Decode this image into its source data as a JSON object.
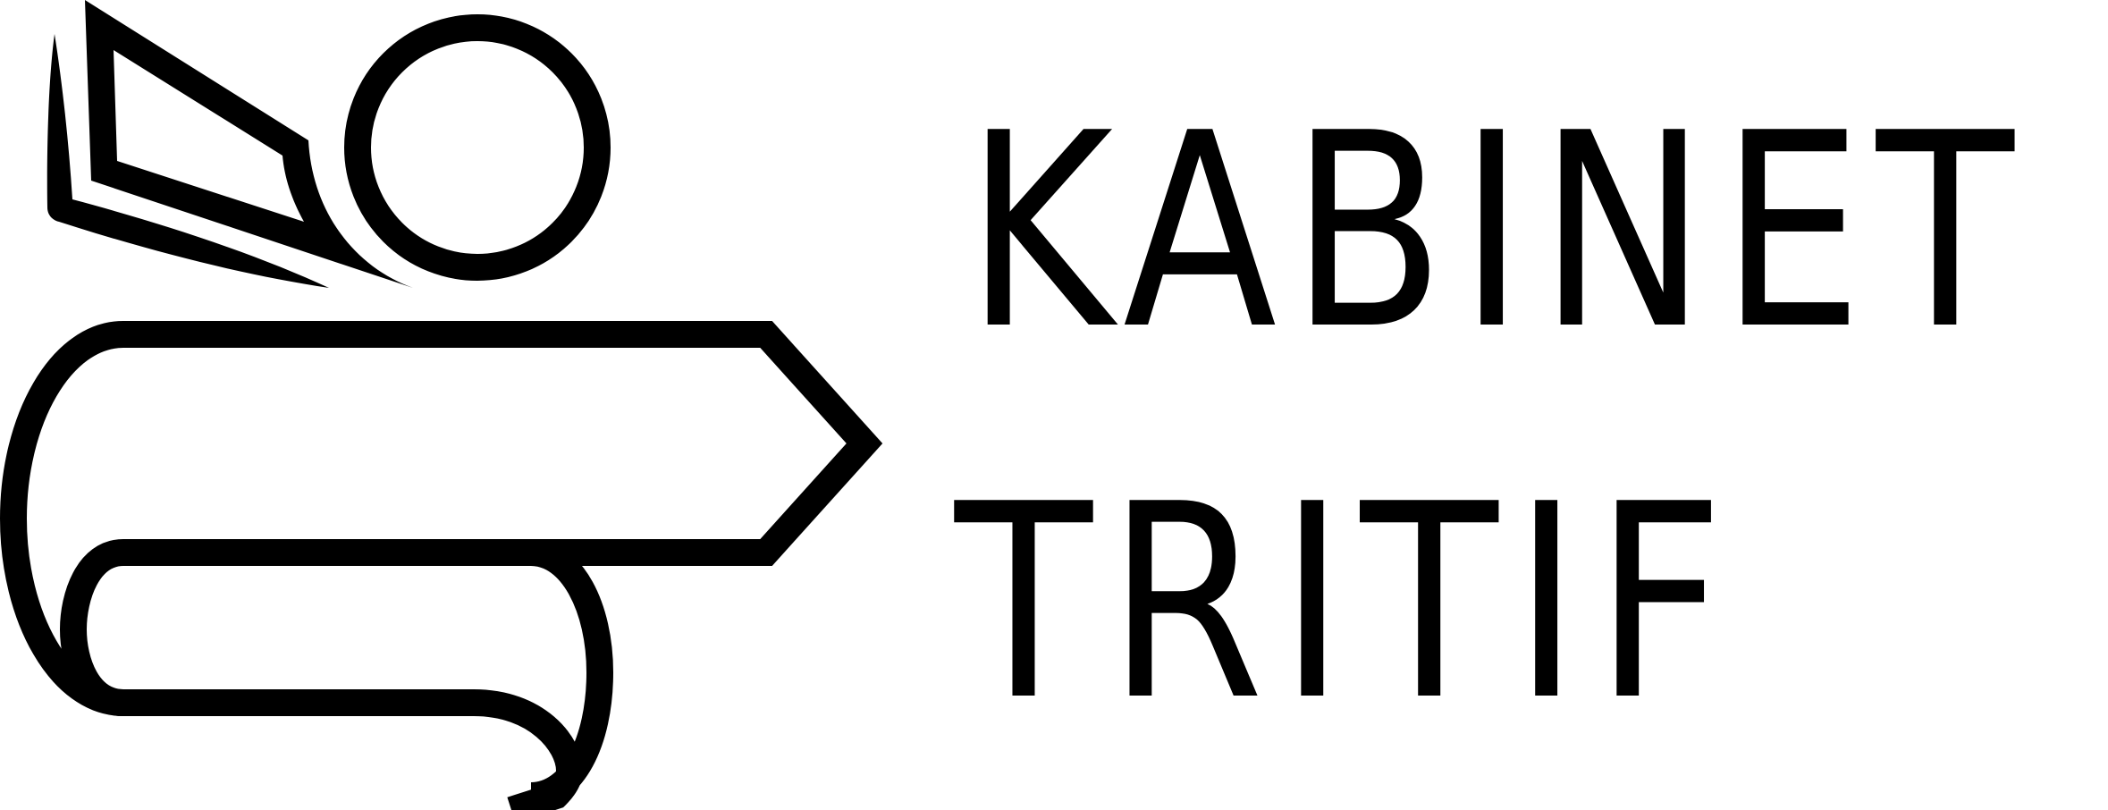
{
  "brand": {
    "line_1": "KABINET",
    "line_2": "TRITIF"
  },
  "colors": {
    "ink": "#000000",
    "background": "#ffffff"
  },
  "icons": {
    "mark": "scroll-banner-with-circle-and-paper-plane-icon"
  }
}
